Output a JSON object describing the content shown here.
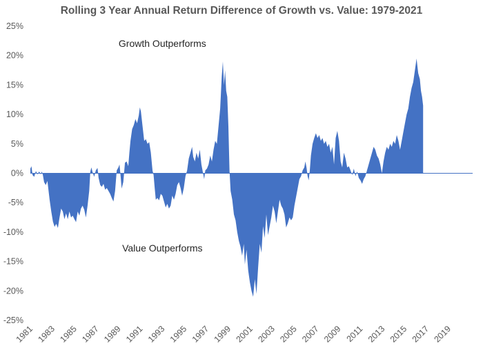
{
  "chart_data": {
    "type": "area",
    "title": "Rolling 3 Year Annual Return Difference of Growth vs. Value: 1979-2021",
    "xlabel": "",
    "ylabel": "",
    "ylim": [
      -25,
      25
    ],
    "xlim": [
      1981,
      2021.2
    ],
    "y_ticks": [
      25,
      20,
      15,
      10,
      5,
      0,
      -5,
      -10,
      -15,
      -20,
      -25
    ],
    "y_tick_labels": [
      "25%",
      "20%",
      "15%",
      "10%",
      "5%",
      "0%",
      "-5%",
      "-10%",
      "-15%",
      "-20%",
      "-25%"
    ],
    "x_ticks": [
      1981,
      1983,
      1985,
      1987,
      1989,
      1991,
      1993,
      1995,
      1997,
      1999,
      2001,
      2003,
      2005,
      2007,
      2009,
      2011,
      2013,
      2015,
      2017,
      2019
    ],
    "x_tick_labels": [
      "1981",
      "1983",
      "1985",
      "1987",
      "1989",
      "1991",
      "1993",
      "1995",
      "1997",
      "1999",
      "2001",
      "2003",
      "2005",
      "2007",
      "2009",
      "2011",
      "2013",
      "2015",
      "2017",
      "2019"
    ],
    "grid": false,
    "fill_color": "#4472c4",
    "annotations": [
      {
        "text": "Growth Outperforms",
        "x": 1993,
        "y": 21.5
      },
      {
        "text": "Value Outperforms",
        "x": 1993,
        "y": -13.3
      }
    ],
    "series": [
      {
        "values": [
          [
            1981.0,
            0.8
          ],
          [
            1981.1,
            1.2
          ],
          [
            1981.2,
            -0.3
          ],
          [
            1981.35,
            -0.6
          ],
          [
            1981.5,
            0.4
          ],
          [
            1981.65,
            -0.2
          ],
          [
            1981.8,
            0.3
          ],
          [
            1981.95,
            -0.2
          ],
          [
            1982.05,
            0.3
          ],
          [
            1982.15,
            -0.4
          ],
          [
            1982.25,
            -1.5
          ],
          [
            1982.4,
            -2.0
          ],
          [
            1982.55,
            -1.3
          ],
          [
            1982.75,
            -4.5
          ],
          [
            1982.9,
            -6.5
          ],
          [
            1983.05,
            -8.2
          ],
          [
            1983.2,
            -9.1
          ],
          [
            1983.35,
            -8.6
          ],
          [
            1983.5,
            -9.3
          ],
          [
            1983.65,
            -7.5
          ],
          [
            1983.8,
            -6.0
          ],
          [
            1983.95,
            -6.5
          ],
          [
            1984.1,
            -7.8
          ],
          [
            1984.25,
            -6.8
          ],
          [
            1984.4,
            -7.8
          ],
          [
            1984.55,
            -6.5
          ],
          [
            1984.7,
            -7.5
          ],
          [
            1984.85,
            -7.2
          ],
          [
            1985.0,
            -7.8
          ],
          [
            1985.15,
            -8.3
          ],
          [
            1985.3,
            -6.5
          ],
          [
            1985.45,
            -7.2
          ],
          [
            1985.6,
            -6.0
          ],
          [
            1985.75,
            -5.5
          ],
          [
            1985.9,
            -6.2
          ],
          [
            1986.05,
            -7.5
          ],
          [
            1986.2,
            -5.5
          ],
          [
            1986.35,
            -3.0
          ],
          [
            1986.45,
            0.3
          ],
          [
            1986.55,
            1.0
          ],
          [
            1986.65,
            0.2
          ],
          [
            1986.8,
            -0.6
          ],
          [
            1986.95,
            0.5
          ],
          [
            1987.1,
            0.9
          ],
          [
            1987.2,
            -0.8
          ],
          [
            1987.35,
            -2.0
          ],
          [
            1987.5,
            -2.3
          ],
          [
            1987.65,
            -1.8
          ],
          [
            1987.8,
            -2.8
          ],
          [
            1987.95,
            -2.5
          ],
          [
            1988.1,
            -3.0
          ],
          [
            1988.25,
            -3.5
          ],
          [
            1988.4,
            -4.2
          ],
          [
            1988.55,
            -4.8
          ],
          [
            1988.7,
            -3.0
          ],
          [
            1988.85,
            0.5
          ],
          [
            1989.0,
            1.0
          ],
          [
            1989.1,
            1.5
          ],
          [
            1989.2,
            -0.5
          ],
          [
            1989.3,
            -2.6
          ],
          [
            1989.45,
            -1.5
          ],
          [
            1989.6,
            1.8
          ],
          [
            1989.75,
            2.0
          ],
          [
            1989.9,
            1.2
          ],
          [
            1990.0,
            3.5
          ],
          [
            1990.1,
            5.5
          ],
          [
            1990.25,
            7.5
          ],
          [
            1990.4,
            8.2
          ],
          [
            1990.55,
            9.2
          ],
          [
            1990.7,
            8.5
          ],
          [
            1990.85,
            9.8
          ],
          [
            1990.95,
            11.2
          ],
          [
            1991.05,
            10.5
          ],
          [
            1991.2,
            8.0
          ],
          [
            1991.35,
            5.5
          ],
          [
            1991.5,
            5.8
          ],
          [
            1991.65,
            5.0
          ],
          [
            1991.8,
            5.3
          ],
          [
            1991.95,
            3.5
          ],
          [
            1992.1,
            0.5
          ],
          [
            1992.2,
            -0.3
          ],
          [
            1992.3,
            -2.5
          ],
          [
            1992.4,
            -4.5
          ],
          [
            1992.55,
            -4.2
          ],
          [
            1992.7,
            -4.6
          ],
          [
            1992.85,
            -3.5
          ],
          [
            1993.0,
            -3.8
          ],
          [
            1993.15,
            -4.8
          ],
          [
            1993.3,
            -5.8
          ],
          [
            1993.45,
            -5.2
          ],
          [
            1993.6,
            -6.0
          ],
          [
            1993.75,
            -5.5
          ],
          [
            1993.9,
            -3.8
          ],
          [
            1994.05,
            -4.5
          ],
          [
            1994.2,
            -3.5
          ],
          [
            1994.35,
            -2.0
          ],
          [
            1994.5,
            -1.5
          ],
          [
            1994.65,
            -2.5
          ],
          [
            1994.8,
            -3.8
          ],
          [
            1994.95,
            -2.5
          ],
          [
            1995.1,
            -0.5
          ],
          [
            1995.25,
            0.5
          ],
          [
            1995.4,
            2.5
          ],
          [
            1995.55,
            3.5
          ],
          [
            1995.7,
            4.5
          ],
          [
            1995.8,
            2.8
          ],
          [
            1995.95,
            2.0
          ],
          [
            1996.1,
            3.5
          ],
          [
            1996.25,
            2.5
          ],
          [
            1996.4,
            4.0
          ],
          [
            1996.55,
            1.5
          ],
          [
            1996.7,
            0.0
          ],
          [
            1996.8,
            -1.0
          ],
          [
            1996.9,
            0.5
          ],
          [
            1997.05,
            0.8
          ],
          [
            1997.2,
            1.5
          ],
          [
            1997.35,
            3.0
          ],
          [
            1997.5,
            2.0
          ],
          [
            1997.65,
            4.0
          ],
          [
            1997.8,
            5.5
          ],
          [
            1997.95,
            5.0
          ],
          [
            1998.1,
            8.0
          ],
          [
            1998.25,
            11.0
          ],
          [
            1998.4,
            16.5
          ],
          [
            1998.5,
            19.0
          ],
          [
            1998.6,
            15.0
          ],
          [
            1998.7,
            17.5
          ],
          [
            1998.8,
            14.0
          ],
          [
            1998.9,
            13.0
          ],
          [
            1999.0,
            8.0
          ],
          [
            1999.1,
            0.5
          ],
          [
            1999.2,
            -3.0
          ],
          [
            1999.35,
            -4.5
          ],
          [
            1999.5,
            -7.0
          ],
          [
            1999.65,
            -8.0
          ],
          [
            1999.8,
            -10.0
          ],
          [
            1999.95,
            -11.5
          ],
          [
            2000.1,
            -12.5
          ],
          [
            2000.25,
            -14.0
          ],
          [
            2000.4,
            -12.0
          ],
          [
            2000.5,
            -15.5
          ],
          [
            2000.65,
            -13.0
          ],
          [
            2000.8,
            -16.5
          ],
          [
            2000.95,
            -18.5
          ],
          [
            2001.1,
            -20.0
          ],
          [
            2001.25,
            -21.0
          ],
          [
            2001.4,
            -18.0
          ],
          [
            2001.55,
            -20.5
          ],
          [
            2001.7,
            -16.0
          ],
          [
            2001.85,
            -12.0
          ],
          [
            2002.0,
            -13.5
          ],
          [
            2002.15,
            -9.0
          ],
          [
            2002.3,
            -11.0
          ],
          [
            2002.45,
            -7.0
          ],
          [
            2002.6,
            -10.5
          ],
          [
            2002.75,
            -9.0
          ],
          [
            2002.9,
            -7.5
          ],
          [
            2003.05,
            -5.5
          ],
          [
            2003.2,
            -6.5
          ],
          [
            2003.35,
            -8.5
          ],
          [
            2003.5,
            -6.5
          ],
          [
            2003.65,
            -4.5
          ],
          [
            2003.8,
            -5.5
          ],
          [
            2003.95,
            -6.0
          ],
          [
            2004.1,
            -7.0
          ],
          [
            2004.25,
            -9.2
          ],
          [
            2004.4,
            -8.5
          ],
          [
            2004.55,
            -7.5
          ],
          [
            2004.7,
            -8.0
          ],
          [
            2004.85,
            -7.5
          ],
          [
            2005.0,
            -5.5
          ],
          [
            2005.15,
            -4.0
          ],
          [
            2005.3,
            -2.5
          ],
          [
            2005.45,
            -1.0
          ],
          [
            2005.6,
            -0.5
          ],
          [
            2005.75,
            0.5
          ],
          [
            2005.9,
            1.0
          ],
          [
            2006.0,
            2.0
          ],
          [
            2006.1,
            1.0
          ],
          [
            2006.2,
            -0.5
          ],
          [
            2006.3,
            -1.2
          ],
          [
            2006.4,
            0.5
          ],
          [
            2006.5,
            3.0
          ],
          [
            2006.65,
            5.0
          ],
          [
            2006.8,
            6.0
          ],
          [
            2006.95,
            6.8
          ],
          [
            2007.1,
            6.0
          ],
          [
            2007.25,
            6.5
          ],
          [
            2007.4,
            5.5
          ],
          [
            2007.55,
            6.0
          ],
          [
            2007.7,
            5.0
          ],
          [
            2007.85,
            5.5
          ],
          [
            2008.0,
            4.5
          ],
          [
            2008.15,
            5.0
          ],
          [
            2008.3,
            3.5
          ],
          [
            2008.45,
            4.5
          ],
          [
            2008.6,
            1.5
          ],
          [
            2008.75,
            6.0
          ],
          [
            2008.9,
            7.2
          ],
          [
            2009.05,
            5.5
          ],
          [
            2009.2,
            2.0
          ],
          [
            2009.35,
            1.0
          ],
          [
            2009.5,
            3.5
          ],
          [
            2009.65,
            2.5
          ],
          [
            2009.8,
            1.0
          ],
          [
            2009.95,
            1.2
          ],
          [
            2010.1,
            0.5
          ],
          [
            2010.25,
            -0.3
          ],
          [
            2010.4,
            0.8
          ],
          [
            2010.55,
            -0.5
          ],
          [
            2010.7,
            0.3
          ],
          [
            2010.85,
            -0.8
          ],
          [
            2011.0,
            -1.2
          ],
          [
            2011.15,
            -1.8
          ],
          [
            2011.3,
            -1.0
          ],
          [
            2011.45,
            -0.5
          ],
          [
            2011.6,
            0.5
          ],
          [
            2011.75,
            1.5
          ],
          [
            2011.9,
            2.5
          ],
          [
            2012.05,
            3.5
          ],
          [
            2012.2,
            4.5
          ],
          [
            2012.35,
            4.0
          ],
          [
            2012.5,
            3.0
          ],
          [
            2012.65,
            2.5
          ],
          [
            2012.8,
            1.5
          ],
          [
            2012.95,
            0.0
          ],
          [
            2013.1,
            2.0
          ],
          [
            2013.25,
            3.5
          ],
          [
            2013.4,
            4.5
          ],
          [
            2013.55,
            4.0
          ],
          [
            2013.7,
            5.0
          ],
          [
            2013.85,
            4.5
          ],
          [
            2014.0,
            5.5
          ],
          [
            2014.15,
            5.0
          ],
          [
            2014.3,
            6.5
          ],
          [
            2014.45,
            5.5
          ],
          [
            2014.6,
            4.0
          ],
          [
            2014.75,
            5.5
          ],
          [
            2014.9,
            7.0
          ],
          [
            2015.05,
            8.5
          ],
          [
            2015.2,
            10.0
          ],
          [
            2015.35,
            11.0
          ],
          [
            2015.5,
            13.0
          ],
          [
            2015.65,
            14.5
          ],
          [
            2015.8,
            15.5
          ],
          [
            2015.95,
            17.5
          ],
          [
            2016.1,
            19.5
          ],
          [
            2016.25,
            17.0
          ],
          [
            2016.4,
            16.0
          ],
          [
            2016.5,
            14.0
          ],
          [
            2016.6,
            13.0
          ],
          [
            2016.7,
            11.5
          ]
        ]
      }
    ]
  }
}
